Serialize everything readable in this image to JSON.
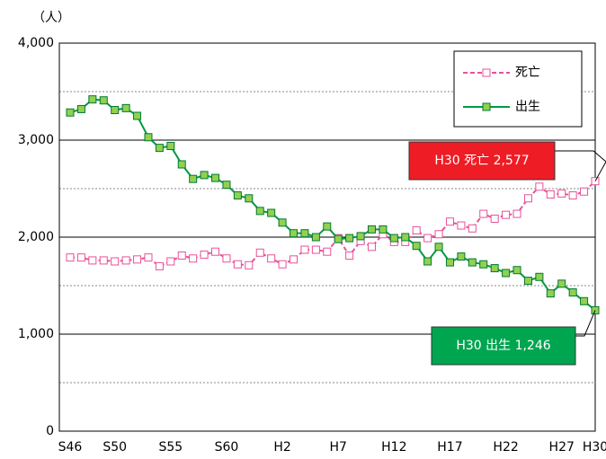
{
  "chart_data": {
    "type": "line",
    "unit_label": "（人）",
    "categories": [
      "S46",
      null,
      null,
      null,
      "S50",
      null,
      null,
      null,
      null,
      "S55",
      null,
      null,
      null,
      null,
      "S60",
      null,
      null,
      null,
      null,
      "H2",
      null,
      null,
      null,
      null,
      "H7",
      null,
      null,
      null,
      null,
      "H12",
      null,
      null,
      null,
      null,
      "H17",
      null,
      null,
      null,
      null,
      "H22",
      null,
      null,
      null,
      null,
      "H27",
      null,
      null,
      "H30"
    ],
    "series": [
      {
        "name": "死亡",
        "color": "#e8519a",
        "values": [
          1790,
          1790,
          1760,
          1760,
          1750,
          1760,
          1770,
          1790,
          1700,
          1750,
          1810,
          1780,
          1820,
          1850,
          1780,
          1720,
          1710,
          1840,
          1780,
          1720,
          1770,
          1870,
          1870,
          1850,
          1990,
          1810,
          1960,
          1900,
          2030,
          1950,
          1950,
          2070,
          1990,
          2030,
          2160,
          2120,
          2090,
          2240,
          2190,
          2230,
          2240,
          2400,
          2520,
          2440,
          2450,
          2430,
          2470,
          2577
        ]
      },
      {
        "name": "出生",
        "color": "#009a44",
        "values": [
          3285,
          3320,
          3420,
          3410,
          3310,
          3330,
          3250,
          3030,
          2920,
          2940,
          2750,
          2600,
          2640,
          2610,
          2540,
          2430,
          2400,
          2270,
          2250,
          2150,
          2040,
          2040,
          2000,
          2110,
          1980,
          1990,
          2010,
          2080,
          2080,
          1990,
          2000,
          1910,
          1750,
          1900,
          1740,
          1800,
          1740,
          1720,
          1680,
          1630,
          1660,
          1550,
          1590,
          1420,
          1520,
          1430,
          1340,
          1246
        ]
      }
    ],
    "ylim": [
      0,
      4000
    ],
    "yticks": [
      0,
      {
        "value": 1000,
        "label": "1,000"
      },
      {
        "value": 2000,
        "label": "2,000"
      },
      {
        "value": 3000,
        "label": "3,000"
      },
      {
        "value": 4000,
        "label": "4,000"
      }
    ],
    "minor_yticks": [
      500,
      1500,
      2500,
      3500
    ],
    "grid": true,
    "legend": "upper right",
    "annotations": [
      {
        "text": "H30  死亡  2,577",
        "color": "#ee1c25"
      },
      {
        "text": "H30 出生  1,246",
        "color": "#00a550"
      }
    ]
  }
}
